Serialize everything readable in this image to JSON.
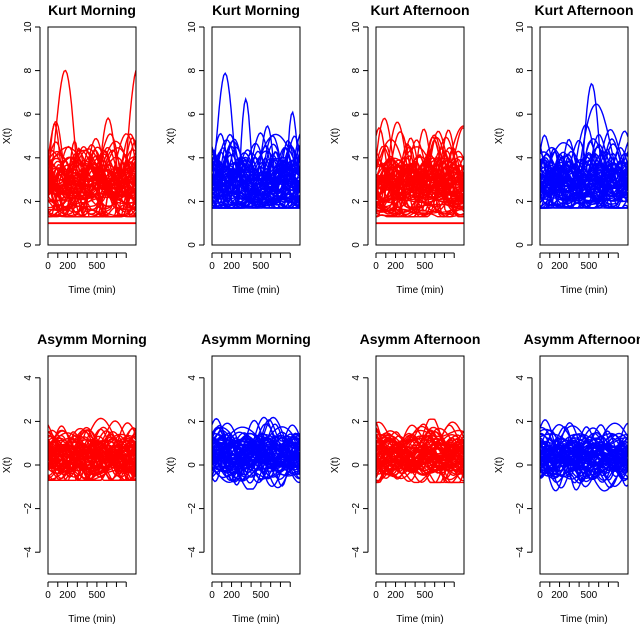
{
  "figure": {
    "xlabel": "Time (min)",
    "ylabel": "X(t)"
  },
  "colors": {
    "red": "#ff0000",
    "blue": "#0000ff"
  },
  "chart_data": [
    {
      "type": "line",
      "title": "Kurt Morning",
      "color": "#ff0000",
      "xlim": [
        0,
        900
      ],
      "ylim": [
        0,
        10
      ],
      "yticks": [
        0,
        2,
        4,
        6,
        8,
        10
      ],
      "xticks": [
        0,
        200,
        500
      ],
      "xticks_minor": [
        100,
        300,
        400,
        600,
        700,
        800
      ],
      "series": [
        {
          "values_band": [
            1.0,
            8.6
          ]
        }
      ],
      "baseline": 1.0
    },
    {
      "type": "line",
      "title": "Kurt Morning",
      "color": "#0000ff",
      "xlim": [
        0,
        900
      ],
      "ylim": [
        0,
        10
      ],
      "yticks": [
        0,
        2,
        4,
        6,
        8,
        10
      ],
      "xticks": [
        0,
        200,
        500
      ],
      "xticks_minor": [
        100,
        300,
        400,
        600,
        700,
        800
      ],
      "series": [
        {
          "values_band": [
            1.4,
            8.0
          ]
        }
      ]
    },
    {
      "type": "line",
      "title": "Kurt Afternoon",
      "color": "#ff0000",
      "xlim": [
        0,
        900
      ],
      "ylim": [
        0,
        10
      ],
      "yticks": [
        0,
        2,
        4,
        6,
        8,
        10
      ],
      "xticks": [
        0,
        200,
        500
      ],
      "xticks_minor": [
        100,
        300,
        400,
        600,
        700,
        800
      ],
      "series": [
        {
          "values_band": [
            1.0,
            7.2
          ]
        }
      ],
      "baseline": 1.0
    },
    {
      "type": "line",
      "title": "Kurt Afternoon",
      "color": "#0000ff",
      "xlim": [
        0,
        900
      ],
      "ylim": [
        0,
        10
      ],
      "yticks": [
        0,
        2,
        4,
        6,
        8,
        10
      ],
      "xticks": [
        0,
        200,
        500
      ],
      "xticks_minor": [
        100,
        300,
        400,
        600,
        700,
        800
      ],
      "series": [
        {
          "values_band": [
            1.4,
            7.9
          ]
        }
      ]
    },
    {
      "type": "line",
      "title": "Asymm Morning",
      "color": "#ff0000",
      "xlim": [
        0,
        900
      ],
      "ylim": [
        -5,
        5
      ],
      "yticks": [
        -4,
        -2,
        0,
        2,
        4
      ],
      "xticks": [
        0,
        200,
        500
      ],
      "xticks_minor": [
        100,
        300,
        400,
        600,
        700,
        800
      ],
      "series": [
        {
          "values_band": [
            -1.0,
            2.5
          ]
        }
      ]
    },
    {
      "type": "line",
      "title": "Asymm Morning",
      "color": "#0000ff",
      "xlim": [
        0,
        900
      ],
      "ylim": [
        -5,
        5
      ],
      "yticks": [
        -4,
        -2,
        0,
        2,
        4
      ],
      "xticks": [
        0,
        200,
        500
      ],
      "xticks_minor": [
        100,
        300,
        400,
        600,
        700,
        800
      ],
      "series": [
        {
          "values_band": [
            -1.4,
            2.4
          ]
        }
      ]
    },
    {
      "type": "line",
      "title": "Asymm Afternoon",
      "color": "#ff0000",
      "xlim": [
        0,
        900
      ],
      "ylim": [
        -5,
        5
      ],
      "yticks": [
        -4,
        -2,
        0,
        2,
        4
      ],
      "xticks": [
        0,
        200,
        500
      ],
      "xticks_minor": [
        100,
        300,
        400,
        600,
        700,
        800
      ],
      "series": [
        {
          "values_band": [
            -1.1,
            2.1
          ]
        }
      ]
    },
    {
      "type": "line",
      "title": "Asymm Afternoon",
      "color": "#0000ff",
      "xlim": [
        0,
        900
      ],
      "ylim": [
        -5,
        5
      ],
      "yticks": [
        -4,
        -2,
        0,
        2,
        4
      ],
      "xticks": [
        0,
        200,
        500
      ],
      "xticks_minor": [
        100,
        300,
        400,
        600,
        700,
        800
      ],
      "series": [
        {
          "values_band": [
            -1.5,
            2.3
          ]
        }
      ]
    }
  ]
}
